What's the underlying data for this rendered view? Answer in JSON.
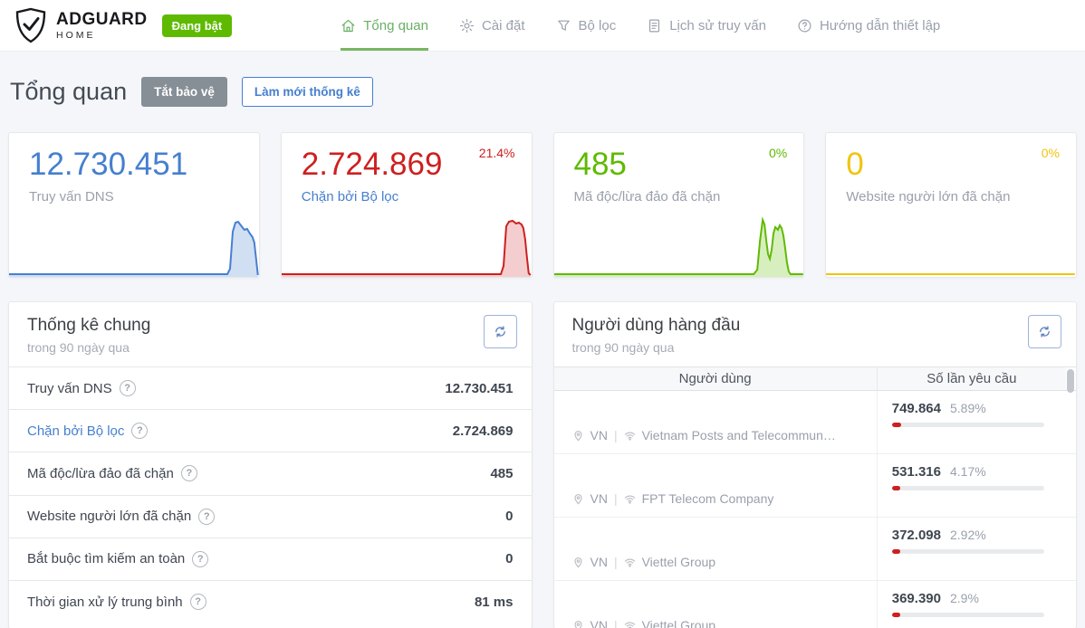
{
  "header": {
    "logo": {
      "brand": "ADGUARD",
      "sub": "HOME"
    },
    "status_badge": "Đang bật",
    "nav": [
      {
        "label": "Tổng quan",
        "icon": "home-icon",
        "active": true
      },
      {
        "label": "Cài đặt",
        "icon": "gear-icon",
        "active": false
      },
      {
        "label": "Bộ lọc",
        "icon": "filter-icon",
        "active": false
      },
      {
        "label": "Lịch sử truy vấn",
        "icon": "file-text-icon",
        "active": false
      },
      {
        "label": "Hướng dẫn thiết lập",
        "icon": "help-circle-icon",
        "active": false
      }
    ]
  },
  "page": {
    "title": "Tổng quan",
    "disable_protection_button": "Tắt bảo vệ",
    "refresh_stats_button": "Làm mới thống kê"
  },
  "cards": [
    {
      "value": "12.730.451",
      "label": "Truy vấn DNS",
      "percent": "",
      "color": "#467fcf"
    },
    {
      "value": "2.724.869",
      "label": "Chặn bởi Bộ lọc",
      "percent": "21.4%",
      "color": "#cd201f"
    },
    {
      "value": "485",
      "label": "Mã độc/lừa đảo đã chặn",
      "percent": "0%",
      "color": "#5eba00"
    },
    {
      "value": "0",
      "label": "Website người lớn đã chặn",
      "percent": "0%",
      "color": "#f1c40f"
    }
  ],
  "general_stats": {
    "title": "Thống kê chung",
    "subtitle": "trong 90 ngày qua",
    "rows": [
      {
        "label": "Truy vấn DNS",
        "value": "12.730.451"
      },
      {
        "label": "Chặn bởi Bộ lọc",
        "value": "2.724.869"
      },
      {
        "label": "Mã độc/lừa đảo đã chặn",
        "value": "485"
      },
      {
        "label": "Website người lớn đã chặn",
        "value": "0"
      },
      {
        "label": "Bắt buộc tìm kiếm an toàn",
        "value": "0"
      },
      {
        "label": "Thời gian xử lý trung bình",
        "value": "81 ms"
      }
    ]
  },
  "top_clients": {
    "title": "Người dùng hàng đầu",
    "subtitle": "trong 90 ngày qua",
    "columns": {
      "client": "Người dùng",
      "requests": "Số lần yêu cầu"
    },
    "rows": [
      {
        "country": "VN",
        "separator": "|",
        "isp": "Vietnam Posts and Telecommun…",
        "requests": "749.864",
        "percent": "5.89%",
        "percent_value": 5.89
      },
      {
        "country": "VN",
        "separator": "|",
        "isp": "FPT Telecom Company",
        "requests": "531.316",
        "percent": "4.17%",
        "percent_value": 4.17
      },
      {
        "country": "VN",
        "separator": "|",
        "isp": "Viettel Group",
        "requests": "372.098",
        "percent": "2.92%",
        "percent_value": 2.92
      },
      {
        "country": "VN",
        "separator": "|",
        "isp": "Viettel Group",
        "requests": "369.390",
        "percent": "2.9%",
        "percent_value": 2.9
      }
    ]
  },
  "colors": {
    "accent_blue": "#467fcf",
    "accent_red": "#cd201f",
    "accent_green": "#5eba00",
    "accent_yellow": "#f1c40f",
    "badge_green": "#5eba00",
    "nav_active_green": "#68b064",
    "bar_fill_red": "#cd201f"
  }
}
